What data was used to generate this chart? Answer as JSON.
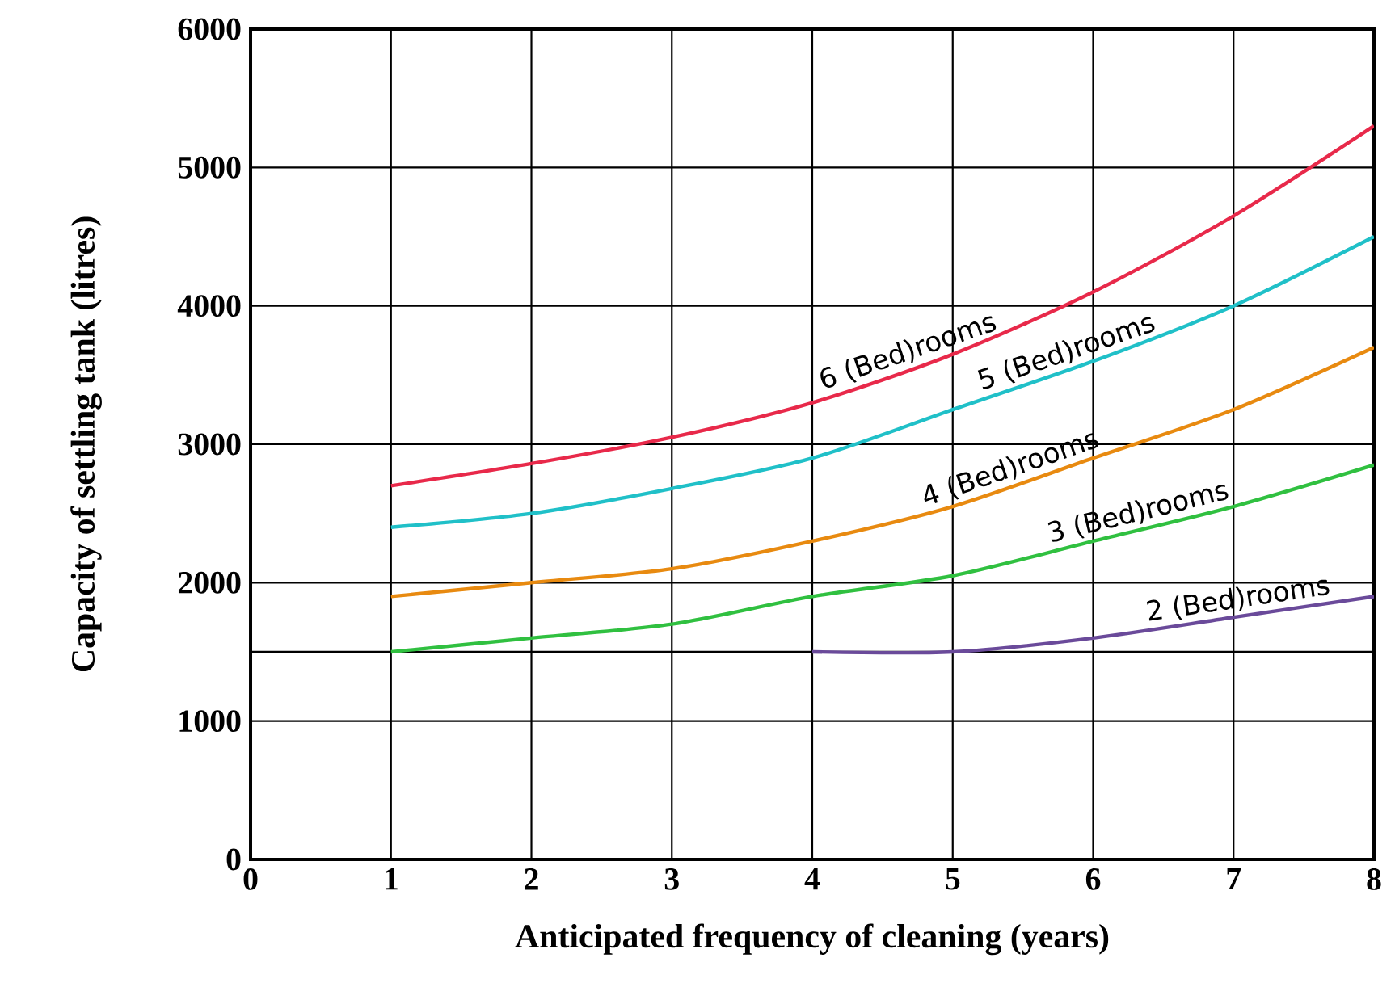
{
  "chart_data": {
    "type": "line",
    "xlabel": "Anticipated frequency of cleaning (years)",
    "ylabel": "Capacity of settling tank (litres)",
    "x": [
      1,
      2,
      3,
      4,
      5,
      6,
      7,
      8
    ],
    "series": [
      {
        "name": "6 (Bed)rooms",
        "color": "#e8294a",
        "values": [
          2700,
          2860,
          3050,
          3300,
          3650,
          4100,
          4650,
          5300
        ]
      },
      {
        "name": "5 (Bed)rooms",
        "color": "#20c0c8",
        "values": [
          2400,
          2500,
          2680,
          2900,
          3250,
          3600,
          4000,
          4500
        ]
      },
      {
        "name": "4 (Bed)rooms",
        "color": "#e88a10",
        "values": [
          1900,
          2000,
          2100,
          2300,
          2550,
          2900,
          3250,
          3700
        ]
      },
      {
        "name": "3 (Bed)rooms",
        "color": "#30c040",
        "values": [
          1500,
          1600,
          1700,
          1900,
          2050,
          2300,
          2550,
          2850
        ]
      },
      {
        "name": "2 (Bed)rooms",
        "color": "#6a4a9a",
        "x": [
          4,
          5,
          6,
          7,
          8
        ],
        "values": [
          1500,
          1500,
          1600,
          1750,
          1900
        ]
      }
    ],
    "xlim": [
      0,
      8
    ],
    "ylim": [
      0,
      6000
    ],
    "xticks": [
      0,
      1,
      2,
      3,
      4,
      5,
      6,
      7,
      8
    ],
    "yticks": [
      0,
      1000,
      2000,
      3000,
      4000,
      5000,
      6000
    ],
    "grid": true,
    "ref_lines": [
      {
        "axis": "y",
        "value": 1500,
        "color": "#000000"
      }
    ]
  }
}
